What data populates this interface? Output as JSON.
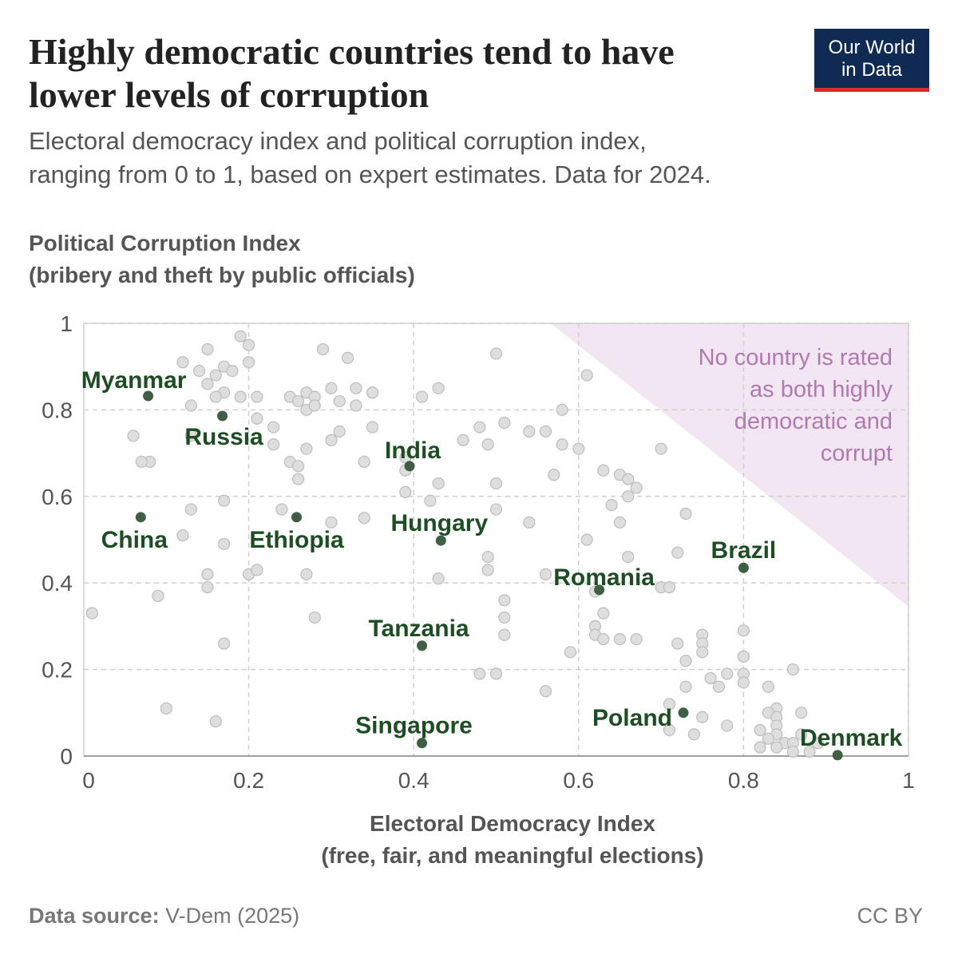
{
  "chart_data": {
    "type": "scatter",
    "title": [
      "Highly democratic countries tend to have",
      "lower levels of corruption"
    ],
    "subtitle": [
      "Electoral democracy index and political corruption index,",
      "ranging from 0 to 1, based on expert estimates. Data for 2024."
    ],
    "y_label": [
      "Political Corruption Index",
      "(bribery and theft by public officials)"
    ],
    "x_label": [
      "Electoral Democracy Index",
      "(free, fair, and meaningful elections)"
    ],
    "annotation": {
      "text": [
        "No country is rated",
        "as both highly",
        "democratic and",
        "corrupt"
      ],
      "color": "#b07ab0",
      "region": [
        [
          0.566,
          1
        ],
        [
          1,
          1
        ],
        [
          1,
          0.345
        ]
      ],
      "region_color": "#f1e6f2"
    },
    "logo": [
      "Our World",
      "in Data"
    ],
    "source_label": "Data source:",
    "source": "V-Dem (2025)",
    "license": "CC BY",
    "xlim": [
      0,
      1
    ],
    "ylim": [
      0,
      1
    ],
    "xticks": [
      0,
      0.2,
      0.4,
      0.6,
      0.8,
      1
    ],
    "yticks": [
      0,
      0.2,
      0.4,
      0.6,
      0.8,
      1
    ],
    "grid": true,
    "series": [
      {
        "color": "#dedede",
        "x": [
          0.01,
          0.19,
          0.2,
          0.15,
          0.12,
          0.17,
          0.18,
          0.2,
          0.14,
          0.16,
          0.15,
          0.17,
          0.16,
          0.19,
          0.21,
          0.13,
          0.21,
          0.23,
          0.13,
          0.06,
          0.23,
          0.27,
          0.25,
          0.26,
          0.26,
          0.08,
          0.07,
          0.29,
          0.32,
          0.25,
          0.26,
          0.27,
          0.28,
          0.3,
          0.27,
          0.28,
          0.31,
          0.33,
          0.35,
          0.35,
          0.33,
          0.31,
          0.3,
          0.35,
          0.34,
          0.41,
          0.43,
          0.5,
          0.39,
          0.39,
          0.43,
          0.42,
          0.46,
          0.48,
          0.49,
          0.51,
          0.54,
          0.56,
          0.58,
          0.58,
          0.6,
          0.61,
          0.57,
          0.63,
          0.65,
          0.66,
          0.67,
          0.66,
          0.64,
          0.65,
          0.7,
          0.73,
          0.5,
          0.5,
          0.54,
          0.61,
          0.66,
          0.72,
          0.56,
          0.49,
          0.49,
          0.43,
          0.51,
          0.51,
          0.51,
          0.62,
          0.7,
          0.71,
          0.63,
          0.62,
          0.62,
          0.63,
          0.65,
          0.67,
          0.59,
          0.72,
          0.75,
          0.75,
          0.75,
          0.73,
          0.8,
          0.8,
          0.78,
          0.8,
          0.8,
          0.76,
          0.77,
          0.73,
          0.71,
          0.48,
          0.5,
          0.56,
          0.75,
          0.74,
          0.71,
          0.78,
          0.83,
          0.86,
          0.84,
          0.83,
          0.87,
          0.84,
          0.82,
          0.84,
          0.84,
          0.83,
          0.85,
          0.86,
          0.87,
          0.89,
          0.82,
          0.86,
          0.88,
          0.84,
          0.09,
          0.09,
          0.1,
          0.16,
          0.17,
          0.15,
          0.15,
          0.12,
          0.13,
          0.17,
          0.17,
          0.2,
          0.21,
          0.24,
          0.27,
          0.3,
          0.34,
          0.28,
          0.39
        ],
        "values": [
          0.33,
          0.97,
          0.95,
          0.94,
          0.91,
          0.9,
          0.89,
          0.91,
          0.89,
          0.88,
          0.86,
          0.84,
          0.83,
          0.83,
          0.83,
          0.81,
          0.78,
          0.76,
          0.74,
          0.74,
          0.72,
          0.71,
          0.68,
          0.67,
          0.64,
          0.68,
          0.68,
          0.94,
          0.92,
          0.83,
          0.82,
          0.84,
          0.83,
          0.85,
          0.8,
          0.81,
          0.82,
          0.85,
          0.84,
          0.84,
          0.81,
          0.75,
          0.73,
          0.76,
          0.68,
          0.83,
          0.85,
          0.93,
          0.66,
          0.61,
          0.63,
          0.59,
          0.73,
          0.76,
          0.72,
          0.77,
          0.75,
          0.75,
          0.8,
          0.72,
          0.71,
          0.88,
          0.65,
          0.66,
          0.65,
          0.64,
          0.62,
          0.6,
          0.58,
          0.54,
          0.71,
          0.56,
          0.63,
          0.57,
          0.54,
          0.5,
          0.46,
          0.47,
          0.42,
          0.46,
          0.43,
          0.41,
          0.36,
          0.32,
          0.28,
          0.38,
          0.39,
          0.39,
          0.33,
          0.3,
          0.28,
          0.27,
          0.27,
          0.27,
          0.24,
          0.26,
          0.28,
          0.26,
          0.24,
          0.22,
          0.29,
          0.23,
          0.19,
          0.19,
          0.17,
          0.18,
          0.16,
          0.16,
          0.12,
          0.19,
          0.19,
          0.15,
          0.09,
          0.05,
          0.06,
          0.07,
          0.16,
          0.2,
          0.11,
          0.1,
          0.1,
          0.09,
          0.06,
          0.07,
          0.05,
          0.04,
          0.03,
          0.03,
          0.05,
          0.03,
          0.02,
          0.01,
          0.01,
          0.02,
          0.37,
          0.37,
          0.11,
          0.08,
          0.26,
          0.39,
          0.42,
          0.51,
          0.57,
          0.59,
          0.49,
          0.42,
          0.43,
          0.57,
          0.42,
          0.54,
          0.55,
          0.32,
          0.69
        ]
      },
      {
        "color": "#3e5f43",
        "label_color": "#1d4d22",
        "labels": [
          "Myanmar",
          "Russia",
          "India",
          "China",
          "Ethiopia",
          "Hungary",
          "Brazil",
          "Romania",
          "Tanzania",
          "Singapore",
          "Poland",
          "Denmark"
        ],
        "x": [
          0.078,
          0.168,
          0.395,
          0.069,
          0.258,
          0.433,
          0.8,
          0.625,
          0.41,
          0.41,
          0.727,
          0.914
        ],
        "values": [
          0.832,
          0.786,
          0.67,
          0.552,
          0.552,
          0.498,
          0.435,
          0.384,
          0.255,
          0.03,
          0.1,
          0.002
        ]
      }
    ]
  }
}
